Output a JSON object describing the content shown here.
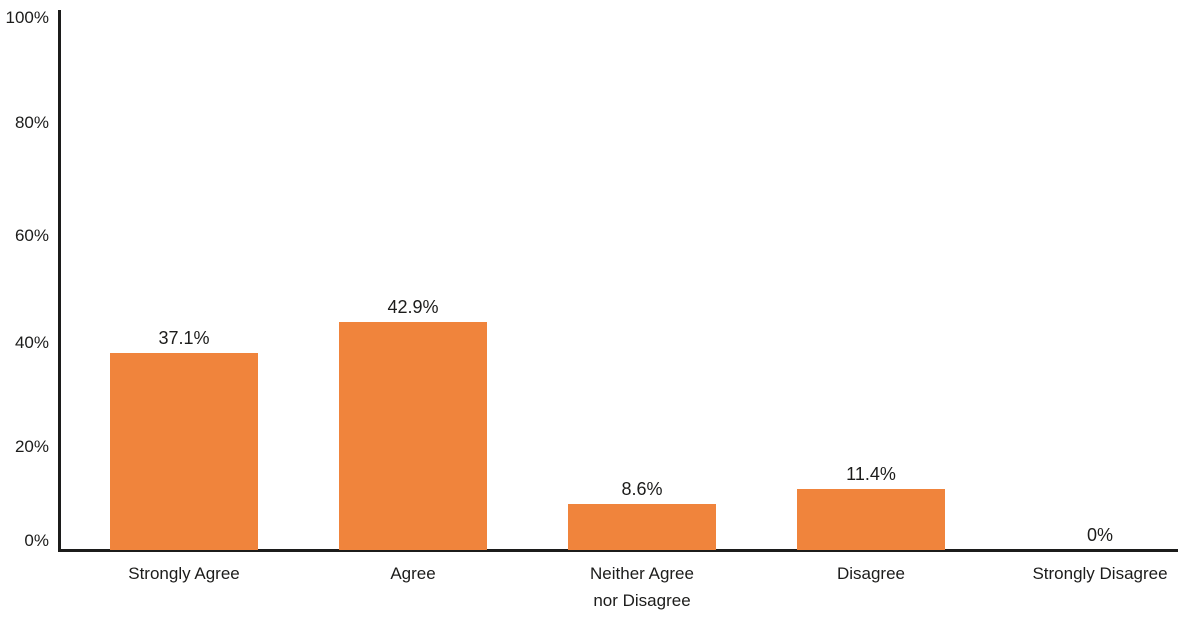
{
  "chart_data": {
    "type": "bar",
    "title": "",
    "xlabel": "",
    "ylabel": "",
    "categories": [
      "Strongly Agree",
      "Agree",
      "Neither Agree\nnor Disagree",
      "Disagree",
      "Strongly Disagree"
    ],
    "values": [
      37.1,
      42.9,
      8.6,
      11.4,
      0
    ],
    "value_labels": [
      "37.1%",
      "42.9%",
      "8.6%",
      "11.4%",
      "0%"
    ],
    "y_ticks": [
      0,
      20,
      40,
      60,
      80,
      100
    ],
    "y_tick_labels": [
      "0%",
      "20%",
      "40%",
      "60%",
      "80%",
      "100%"
    ],
    "ylim": [
      0,
      100
    ],
    "grid": false,
    "legend": false,
    "bar_color": "#F0843C",
    "axis_color": "#1C1C1B",
    "text_color": "#1C1C1B"
  }
}
